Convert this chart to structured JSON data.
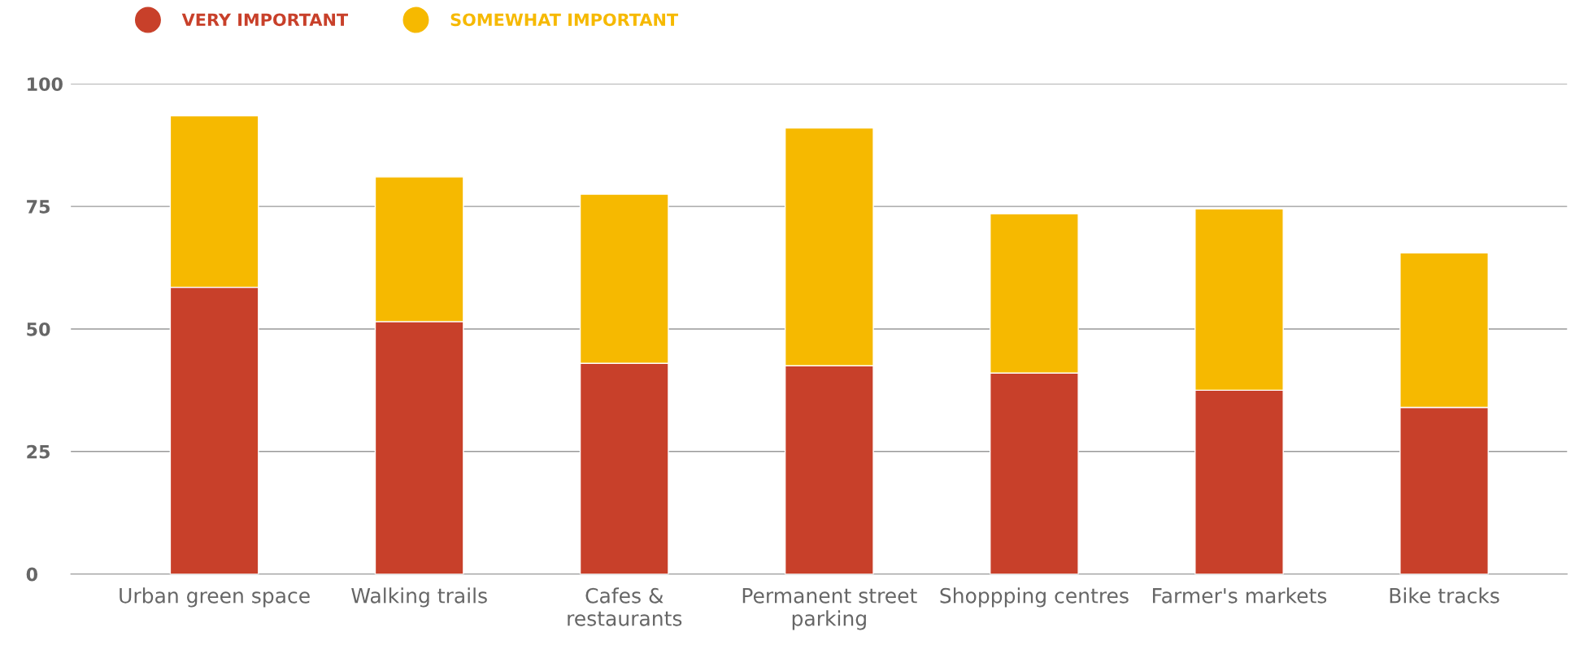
{
  "chart_data": {
    "type": "bar",
    "stacked": true,
    "categories": [
      "Urban green space",
      "Walking trails",
      "Cafes & restaurants",
      "Permanent street parking",
      "Shoppping centres",
      "Farmer's markets",
      "Bike tracks"
    ],
    "series": [
      {
        "name": "VERY IMPORTANT",
        "color": "#c8402a",
        "values": [
          58.5,
          51.5,
          43,
          42.5,
          41,
          37.5,
          34
        ]
      },
      {
        "name": "SOMEWHAT IMPORTANT",
        "color": "#f6b900",
        "values": [
          35,
          29.5,
          34.5,
          48.5,
          32.5,
          37,
          31.5
        ]
      }
    ],
    "ylim": [
      0,
      100
    ],
    "yticks": [
      0,
      25,
      50,
      75,
      100
    ],
    "grid": "y",
    "legend": "top left",
    "marker": "circle"
  }
}
